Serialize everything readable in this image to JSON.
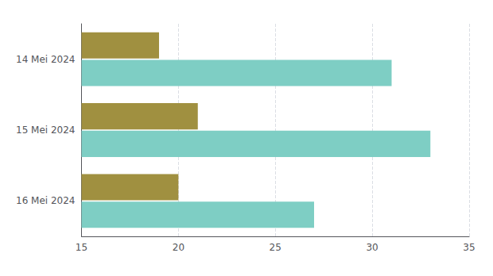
{
  "chart_data": {
    "type": "bar",
    "orientation": "horizontal",
    "categories": [
      "14 Mei 2024",
      "15 Mei 2024",
      "16 Mei 2024"
    ],
    "series": [
      {
        "color": "#a09040",
        "values": [
          19,
          21,
          20
        ]
      },
      {
        "color": "#7ecec4",
        "values": [
          31,
          33,
          27
        ]
      }
    ],
    "xlim": [
      15,
      35
    ],
    "xticks": [
      15,
      20,
      25,
      30,
      35
    ],
    "grid": true
  }
}
